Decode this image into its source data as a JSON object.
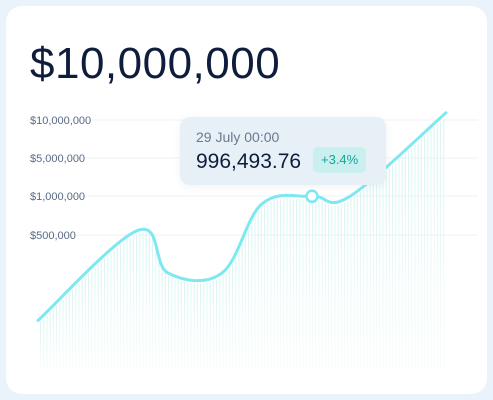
{
  "header": {
    "value": "$10,000,000"
  },
  "tooltip": {
    "date": "29 July 00:00",
    "value": "996,493.76",
    "change": "+3.4%"
  },
  "colors": {
    "line": "#7ee8f1",
    "title": "#0f1d3d",
    "badge_bg": "#c9f0ef",
    "badge_text": "#17a39a"
  },
  "chart_data": {
    "type": "line",
    "y_ticks": [
      {
        "label": "$10,000,000",
        "value": 10000000
      },
      {
        "label": "$5,000,000",
        "value": 5000000
      },
      {
        "label": "$1,000,000",
        "value": 1000000
      },
      {
        "label": "$500,000",
        "value": 500000
      }
    ],
    "grid": true,
    "highlighted_point": {
      "label": "29 July 00:00",
      "value": 996493.76
    },
    "series": [
      {
        "values": [
          50000,
          560000,
          300000,
          300000,
          900000,
          996493.76,
          996493.76,
          11800000
        ]
      }
    ]
  }
}
